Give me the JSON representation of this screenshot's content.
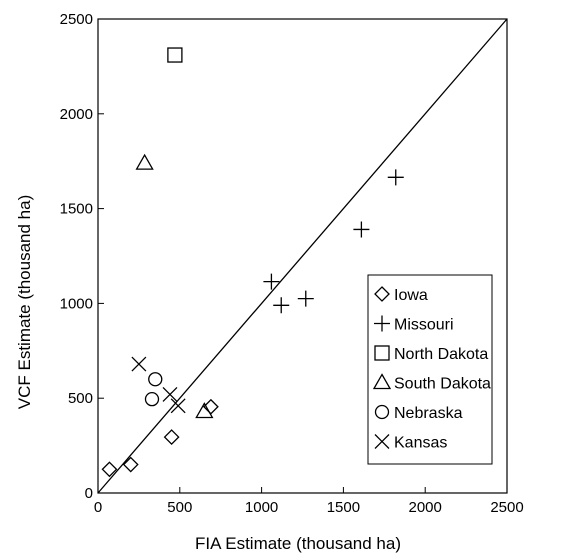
{
  "chart_data": {
    "type": "scatter",
    "title": "",
    "xlabel": "FIA Estimate (thousand ha)",
    "ylabel": "VCF Estimate (thousand ha)",
    "xlim": [
      0,
      2500
    ],
    "ylim": [
      0,
      2500
    ],
    "xticks": [
      0,
      500,
      1000,
      1500,
      2000,
      2500
    ],
    "yticks": [
      0,
      500,
      1000,
      1500,
      2000,
      2500
    ],
    "grid": false,
    "legend": "lower-right",
    "reference_line": {
      "type": "1:1",
      "from": [
        0,
        0
      ],
      "to": [
        2500,
        2500
      ]
    },
    "series": [
      {
        "name": "Iowa",
        "marker": "diamond",
        "points": [
          [
            70,
            125
          ],
          [
            200,
            150
          ],
          [
            450,
            295
          ],
          [
            690,
            455
          ]
        ]
      },
      {
        "name": "Missouri",
        "marker": "plus",
        "points": [
          [
            1060,
            1115
          ],
          [
            1120,
            990
          ],
          [
            1270,
            1025
          ],
          [
            1610,
            1390
          ],
          [
            1820,
            1665
          ]
        ]
      },
      {
        "name": "North Dakota",
        "marker": "square",
        "points": [
          [
            470,
            2310
          ]
        ]
      },
      {
        "name": "South Dakota",
        "marker": "triangle",
        "points": [
          [
            285,
            1740
          ],
          [
            650,
            430
          ]
        ]
      },
      {
        "name": "Nebraska",
        "marker": "circle",
        "points": [
          [
            330,
            495
          ],
          [
            350,
            600
          ]
        ]
      },
      {
        "name": "Kansas",
        "marker": "x",
        "points": [
          [
            250,
            680
          ],
          [
            440,
            520
          ],
          [
            490,
            460
          ]
        ]
      }
    ]
  }
}
